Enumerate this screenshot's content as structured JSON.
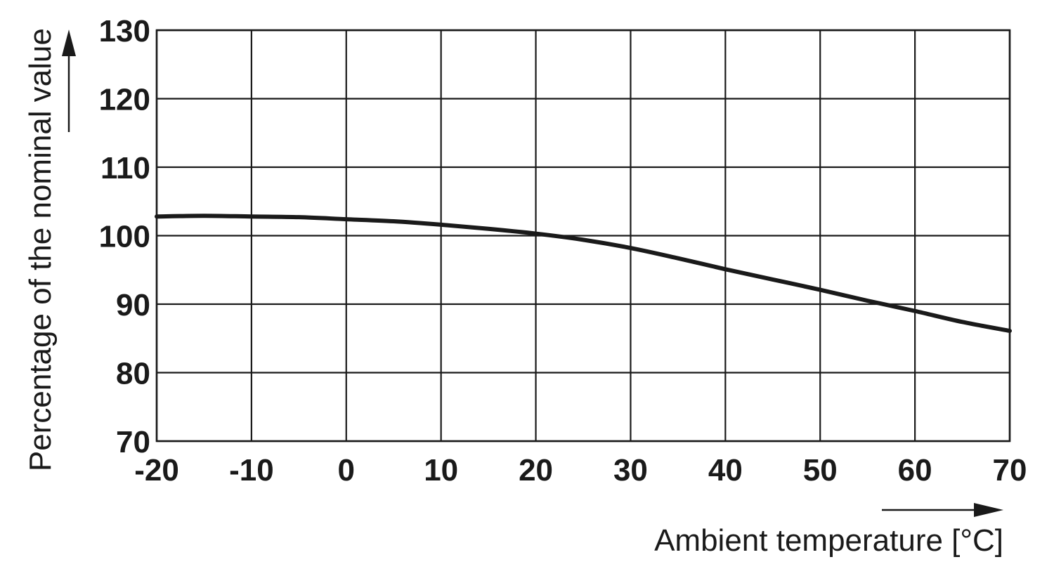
{
  "chart_data": {
    "type": "line",
    "title": "",
    "xlabel": "Ambient temperature [°C]",
    "ylabel": "Percentage of the nominal value",
    "xlim": [
      -20,
      70
    ],
    "ylim": [
      70,
      130
    ],
    "x_ticks": [
      -20,
      -10,
      0,
      10,
      20,
      30,
      40,
      50,
      60,
      70
    ],
    "y_ticks": [
      70,
      80,
      90,
      100,
      110,
      120,
      130
    ],
    "x_tick_labels": [
      "-20",
      "-10",
      "0",
      "10",
      "20",
      "30",
      "40",
      "50",
      "60",
      "70"
    ],
    "y_tick_labels": [
      "70",
      "80",
      "90",
      "100",
      "110",
      "120",
      "130"
    ],
    "grid": true,
    "series": [
      {
        "x": [
          -20,
          -15,
          -10,
          -5,
          0,
          5,
          10,
          15,
          20,
          25,
          30,
          35,
          40,
          45,
          50,
          55,
          60,
          65,
          70
        ],
        "y": [
          102.8,
          102.9,
          102.8,
          102.7,
          102.4,
          102.1,
          101.6,
          101.0,
          100.3,
          99.4,
          98.2,
          96.7,
          95.1,
          93.6,
          92.1,
          90.5,
          89.0,
          87.4,
          86.1
        ]
      }
    ],
    "colors": {
      "line": "#1a1a1a",
      "grid": "#1a1a1a",
      "text": "#1a1a1a"
    }
  }
}
